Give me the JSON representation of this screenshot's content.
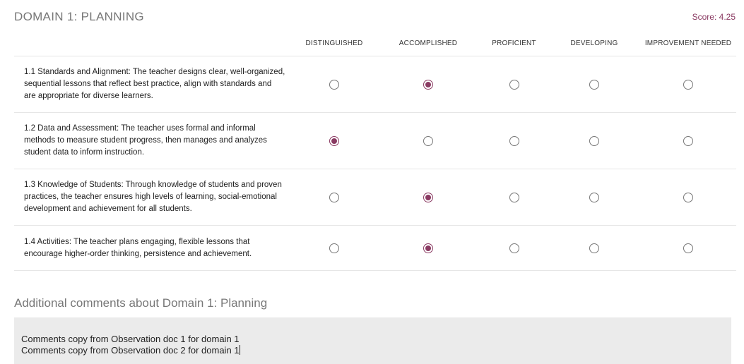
{
  "domain": {
    "title": "DOMAIN 1: PLANNING",
    "score_text": "Score: 4.25"
  },
  "rubric": {
    "columns": [
      "DISTINGUISHED",
      "ACCOMPLISHED",
      "PROFICIENT",
      "DEVELOPING",
      "IMPROVEMENT NEEDED"
    ],
    "rows": [
      {
        "description": "1.1 Standards and Alignment: The teacher designs clear, well-organized, sequential lessons that reflect best practice, align with standards and are appropriate for diverse learners.",
        "selected": "ACCOMPLISHED"
      },
      {
        "description": "1.2 Data and Assessment: The teacher uses formal and informal methods to measure student progress, then manages and analyzes student data to inform instruction.",
        "selected": "DISTINGUISHED"
      },
      {
        "description": "1.3 Knowledge of Students: Through knowledge of students and proven practices, the teacher ensures high levels of learning, social-emotional development and achievement for all students.",
        "selected": "ACCOMPLISHED"
      },
      {
        "description": "1.4 Activities: The teacher plans engaging, flexible lessons that encourage higher-order thinking, persistence and achievement.",
        "selected": "ACCOMPLISHED"
      }
    ]
  },
  "comments": {
    "title": "Additional comments about Domain 1: Planning",
    "lines": [
      "Comments copy from Observation doc 1 for domain 1",
      "Comments copy from Observation doc 2 for domain 1"
    ]
  },
  "colors": {
    "accent": "#8a3a62",
    "comment_bg": "#ebebeb",
    "heading_gray": "#777777"
  }
}
